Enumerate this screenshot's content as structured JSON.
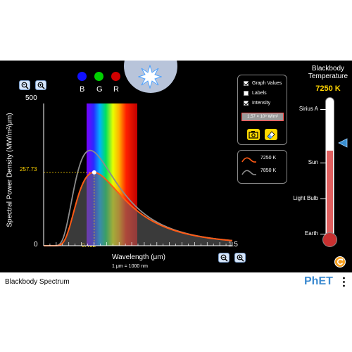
{
  "app": {
    "title": "Blackbody Spectrum",
    "brand": "PhET"
  },
  "rgb": {
    "labels": [
      "B",
      "G",
      "R"
    ],
    "colors": [
      "#1010ff",
      "#00d000",
      "#d00000"
    ]
  },
  "graph": {
    "y_max_label": "500",
    "x_zero_label": "0",
    "x_max_label": "1.5",
    "y_axis_title": "Spectral Power Density (MW/m²/μm)",
    "x_axis_title": "Wavelength (μm)",
    "unit_note": "1 μm  =  1000 nm",
    "peak_value_label": "257.73",
    "peak_wavelength_label": "0.402"
  },
  "options": {
    "graph_values": {
      "label": "Graph Values",
      "checked": true
    },
    "labels": {
      "label": "Labels",
      "checked": false
    },
    "intensity": {
      "label": "Intensity",
      "checked": true
    },
    "intensity_value": "1.57 × 10⁸ W/m²"
  },
  "legend": [
    {
      "label": "7250 K",
      "color": "#ff5a14"
    },
    {
      "label": "7850 K",
      "color": "#8c8c8c"
    }
  ],
  "thermometer": {
    "title_line1": "Blackbody",
    "title_line2": "Temperature",
    "temperature": "7250 K",
    "marks": [
      "Sirius A",
      "Sun",
      "Light Bulb",
      "Earth"
    ],
    "level_fraction": 0.62
  },
  "chart_data": {
    "type": "line",
    "xlabel": "Wavelength (μm)",
    "ylabel": "Spectral Power Density (MW/m²/μm)",
    "xlim": [
      0,
      1.5
    ],
    "ylim": [
      0,
      500
    ],
    "series": [
      {
        "name": "7250 K",
        "temperature": 7250,
        "peak_x": 0.402,
        "peak_y": 257.73,
        "color": "#ff5a14",
        "filled": true
      },
      {
        "name": "7850 K",
        "temperature": 7850,
        "peak_x": 0.37,
        "peak_y": 335,
        "color": "#8c8c8c",
        "filled": false
      }
    ]
  }
}
